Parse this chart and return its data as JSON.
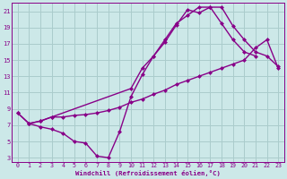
{
  "xlabel": "Windchill (Refroidissement éolien,°C)",
  "bg_color": "#cce8e8",
  "grid_color": "#aacccc",
  "line_color": "#880088",
  "marker": "D",
  "markersize": 2.5,
  "linewidth": 1.0,
  "xlim_min": -0.5,
  "xlim_max": 23.5,
  "ylim_min": 2.5,
  "ylim_max": 22.0,
  "xticks": [
    0,
    1,
    2,
    3,
    4,
    5,
    6,
    7,
    8,
    9,
    10,
    11,
    12,
    13,
    14,
    15,
    16,
    17,
    18,
    19,
    20,
    21,
    22,
    23
  ],
  "yticks": [
    3,
    5,
    7,
    9,
    11,
    13,
    15,
    17,
    19,
    21
  ],
  "line1_x": [
    0,
    1,
    2,
    3,
    4,
    5,
    6,
    7,
    8,
    9,
    10,
    11,
    12,
    13,
    14,
    15,
    16,
    17,
    18,
    19,
    20,
    21
  ],
  "line1_y": [
    8.5,
    7.2,
    6.8,
    6.5,
    6.0,
    5.0,
    4.8,
    3.2,
    3.0,
    6.2,
    10.5,
    13.2,
    15.5,
    17.2,
    19.3,
    21.2,
    20.8,
    21.5,
    19.5,
    17.5,
    16.0,
    15.5
  ],
  "line2_x": [
    0,
    1,
    2,
    3,
    4,
    5,
    6,
    7,
    8,
    9,
    10,
    11,
    12,
    13,
    14,
    15,
    16,
    17,
    18,
    19,
    20,
    21,
    22,
    23
  ],
  "line2_y": [
    8.5,
    7.2,
    7.5,
    8.0,
    8.0,
    8.2,
    8.3,
    8.5,
    8.8,
    9.2,
    9.8,
    10.2,
    10.8,
    11.3,
    12.0,
    12.5,
    13.0,
    13.5,
    14.0,
    14.5,
    15.0,
    16.5,
    17.5,
    14.0
  ],
  "line3_x": [
    1,
    2,
    3,
    10,
    11,
    12,
    13,
    14,
    15,
    16,
    17,
    18,
    19,
    20,
    21,
    22,
    23
  ],
  "line3_y": [
    7.2,
    7.5,
    8.0,
    11.5,
    14.0,
    15.5,
    17.5,
    19.5,
    20.5,
    21.5,
    21.5,
    21.5,
    19.2,
    17.5,
    16.0,
    15.5,
    14.2
  ]
}
